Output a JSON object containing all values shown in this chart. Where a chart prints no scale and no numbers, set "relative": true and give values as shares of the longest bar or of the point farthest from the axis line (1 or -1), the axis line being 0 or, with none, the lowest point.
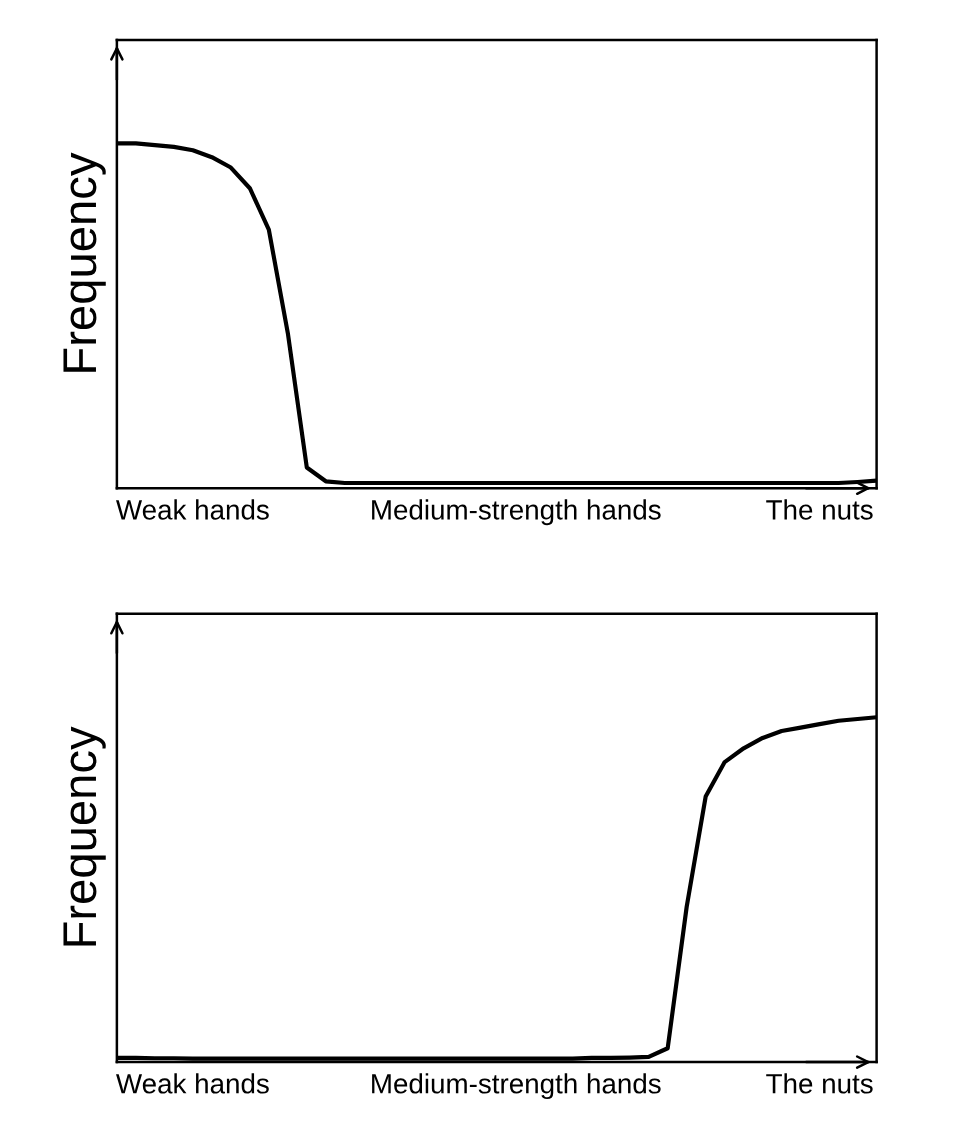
{
  "chart_data": [
    {
      "type": "line",
      "relative": true,
      "ylabel": "Frequency",
      "categories": [
        null,
        null,
        null,
        null,
        "Weak hands",
        null,
        null,
        null,
        null,
        null,
        null,
        null,
        null,
        null,
        null,
        null,
        null,
        null,
        null,
        null,
        null,
        "Medium-strength hands",
        null,
        null,
        null,
        null,
        null,
        null,
        null,
        null,
        null,
        null,
        null,
        null,
        null,
        null,
        null,
        "The nuts",
        null,
        null,
        null
      ],
      "series": [
        {
          "color": "#000000",
          "values": [
            1.0,
            1.0,
            0.995,
            0.99,
            0.98,
            0.96,
            0.93,
            0.87,
            0.75,
            0.45,
            0.06,
            0.02,
            0.015,
            0.015,
            0.015,
            0.015,
            0.015,
            0.015,
            0.015,
            0.015,
            0.015,
            0.015,
            0.015,
            0.015,
            0.015,
            0.015,
            0.015,
            0.015,
            0.015,
            0.015,
            0.015,
            0.015,
            0.015,
            0.015,
            0.015,
            0.015,
            0.015,
            0.015,
            0.015,
            0.018,
            0.022
          ]
        }
      ]
    },
    {
      "type": "line",
      "relative": true,
      "ylabel": "Frequency",
      "categories": [
        null,
        null,
        null,
        null,
        "Weak hands",
        null,
        null,
        null,
        null,
        null,
        null,
        null,
        null,
        null,
        null,
        null,
        null,
        null,
        null,
        null,
        null,
        "Medium-strength hands",
        null,
        null,
        null,
        null,
        null,
        null,
        null,
        null,
        null,
        null,
        null,
        null,
        null,
        null,
        null,
        "The nuts",
        null,
        null,
        null
      ],
      "series": [
        {
          "color": "#000000",
          "values": [
            0.012,
            0.012,
            0.011,
            0.011,
            0.01,
            0.01,
            0.01,
            0.01,
            0.01,
            0.01,
            0.01,
            0.01,
            0.01,
            0.01,
            0.01,
            0.01,
            0.01,
            0.01,
            0.01,
            0.01,
            0.01,
            0.01,
            0.01,
            0.01,
            0.01,
            0.012,
            0.012,
            0.013,
            0.015,
            0.04,
            0.45,
            0.77,
            0.87,
            0.91,
            0.94,
            0.96,
            0.97,
            0.98,
            0.99,
            0.995,
            1.0
          ]
        }
      ]
    }
  ]
}
